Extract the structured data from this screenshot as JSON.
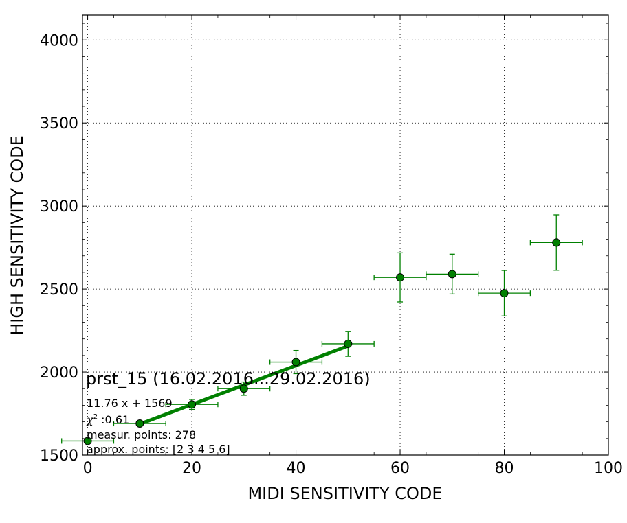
{
  "chart_data": {
    "type": "scatter",
    "title": "prst_15 (16.02.2016...29.02.2016)",
    "xlabel": "MIDI SENSITIVITY CODE",
    "ylabel": "HIGH SENSITIVITY CODE",
    "xlim": [
      -1,
      100
    ],
    "ylim": [
      1500,
      4150
    ],
    "grid": true,
    "x_ticks": [
      "0",
      "20",
      "40",
      "60",
      "80",
      "100"
    ],
    "y_ticks": [
      "1500",
      "2000",
      "2500",
      "3000",
      "3500",
      "4000"
    ],
    "colors": {
      "series": "#008000",
      "marker": "#008000",
      "edge": "#000000"
    },
    "series": [
      {
        "points": [
          {
            "x": 0,
            "y": 1585,
            "xerr": 5,
            "yerr": 0
          },
          {
            "x": 10,
            "y": 1690,
            "xerr": 5,
            "yerr": 0
          },
          {
            "x": 20,
            "y": 1805,
            "xerr": 5,
            "yerr": 30
          },
          {
            "x": 30,
            "y": 1900,
            "xerr": 5,
            "yerr": 40
          },
          {
            "x": 40,
            "y": 2060,
            "xerr": 5,
            "yerr": 70
          },
          {
            "x": 50,
            "y": 2170,
            "xerr": 5,
            "yerr": 75
          },
          {
            "x": 60,
            "y": 2570,
            "xerr": 5,
            "yerr": 148
          },
          {
            "x": 70,
            "y": 2590,
            "xerr": 5,
            "yerr": 120
          },
          {
            "x": 80,
            "y": 2475,
            "xerr": 5,
            "yerr": 137
          },
          {
            "x": 90,
            "y": 2780,
            "xerr": 5,
            "yerr": 167
          }
        ]
      }
    ],
    "fit": {
      "slope": 11.76,
      "intercept": 1569,
      "x_range": [
        10,
        50
      ]
    },
    "annotations": {
      "fit_equation": "11.76 x + 1569",
      "chi_label": "χ",
      "chi_sup": "2",
      "chi_value": " :0.61",
      "measur_points": "measur. points: 278",
      "approx_points": "approx. points: [2 3 4 5 6]"
    }
  }
}
